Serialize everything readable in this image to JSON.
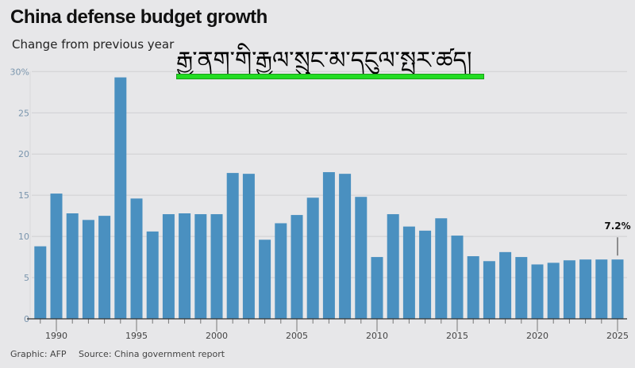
{
  "chart_data": {
    "type": "bar",
    "title": "China defense budget growth",
    "subtitle": "Change from previous year",
    "categories": [
      1989,
      1990,
      1991,
      1992,
      1993,
      1994,
      1995,
      1996,
      1997,
      1998,
      1999,
      2000,
      2001,
      2002,
      2003,
      2004,
      2005,
      2006,
      2007,
      2008,
      2009,
      2010,
      2011,
      2012,
      2013,
      2014,
      2015,
      2016,
      2017,
      2018,
      2019,
      2020,
      2021,
      2022,
      2023,
      2024,
      2025
    ],
    "values": [
      8.8,
      15.2,
      12.8,
      12.0,
      12.5,
      29.3,
      14.6,
      10.6,
      12.7,
      12.8,
      12.7,
      12.7,
      17.7,
      17.6,
      9.6,
      11.6,
      12.6,
      14.7,
      17.8,
      17.6,
      14.8,
      7.5,
      12.7,
      11.2,
      10.7,
      12.2,
      10.1,
      7.6,
      7.0,
      8.1,
      7.5,
      6.6,
      6.8,
      7.1,
      7.2,
      7.2,
      7.2
    ],
    "ylim": [
      0,
      30
    ],
    "y_ticks": [
      "0",
      "5",
      "10",
      "15",
      "20",
      "25",
      "30%"
    ],
    "y_tick_values": [
      0,
      5,
      10,
      15,
      20,
      25,
      30
    ],
    "x_tick_labels": [
      "1990",
      "1995",
      "2000",
      "2005",
      "2010",
      "2015",
      "2020",
      "2025"
    ],
    "annotation": {
      "year": 2025,
      "label": "7.2%"
    },
    "bar_color": "#4a90c0",
    "grid": true,
    "xlabel": "",
    "ylabel": ""
  },
  "overlay_text": "རྒྱ་ནག་གི་རྒྱལ་སྲུང་མ་དངུལ་སྤར་ཚད།",
  "footer": {
    "credit": "Graphic: AFP",
    "source": "Source: China government report"
  }
}
